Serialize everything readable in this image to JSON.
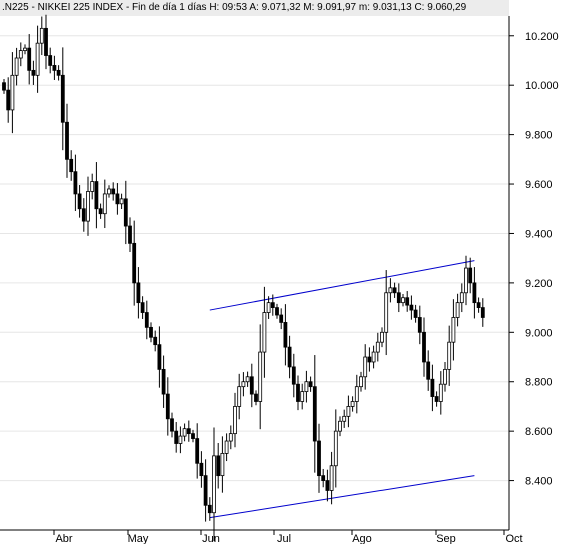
{
  "header": {
    "text": ".N225 - NIKKEI 225 INDEX - Fin de día 1 días  H: 09:53  A: 9.071,32  M: 9.091,97  m: 9.031,13  C: 9.060,29"
  },
  "chart_data": {
    "type": "candlestick",
    "title": "",
    "xlabel": "",
    "ylabel": "",
    "ylim": [
      8200,
      10280
    ],
    "x_tick_labels": [
      "Abr",
      "May",
      "Jun",
      "Jul",
      "Ago",
      "Sep",
      "Oct"
    ],
    "y_ticks": [
      {
        "value": 10200,
        "label": "10.200"
      },
      {
        "value": 10000,
        "label": "10.000"
      },
      {
        "value": 9800,
        "label": "9.800"
      },
      {
        "value": 9600,
        "label": "9.600"
      },
      {
        "value": 9400,
        "label": "9.400"
      },
      {
        "value": 9200,
        "label": "9.200"
      },
      {
        "value": 9000,
        "label": "9.000"
      },
      {
        "value": 8800,
        "label": "8.800"
      },
      {
        "value": 8600,
        "label": "8.600"
      },
      {
        "value": 8400,
        "label": "8.400"
      }
    ],
    "closes": [
      9980,
      9900,
      10040,
      10110,
      10140,
      10150,
      10060,
      10040,
      10170,
      10230,
      10120,
      10080,
      10060,
      10040,
      9850,
      9700,
      9650,
      9560,
      9500,
      9450,
      9570,
      9610,
      9500,
      9480,
      9560,
      9580,
      9560,
      9520,
      9540,
      9430,
      9360,
      9200,
      9120,
      9080,
      9020,
      8980,
      8950,
      8850,
      8750,
      8650,
      8600,
      8550,
      8580,
      8610,
      8590,
      8570,
      8470,
      8420,
      8300,
      8270,
      8500,
      8420,
      8510,
      8560,
      8590,
      8700,
      8780,
      8800,
      8820,
      8750,
      8720,
      8920,
      9080,
      9120,
      9100,
      9070,
      9040,
      8940,
      8860,
      8790,
      8720,
      8760,
      8800,
      8780,
      8560,
      8420,
      8400,
      8360,
      8460,
      8600,
      8640,
      8660,
      8700,
      8720,
      8780,
      8820,
      8900,
      8880,
      8920,
      8960,
      9000,
      9160,
      9180,
      9160,
      9120,
      9140,
      9110,
      9090,
      9060,
      9000,
      8880,
      8810,
      8740,
      8720,
      8790,
      8850,
      8960,
      9060,
      9120,
      9160,
      9260,
      9200,
      9120,
      9100,
      9060
    ],
    "channel_lines": [
      {
        "name": "",
        "from": {
          "day": 49,
          "value": 9090
        },
        "to": {
          "day": 112,
          "value": 9290
        }
      },
      {
        "name": "",
        "from": {
          "day": 49,
          "value": 8250
        },
        "to": {
          "day": 112,
          "value": 8420
        }
      }
    ],
    "colors": {
      "candle": "#000000",
      "channel": "#0000cc",
      "header_bg": "#ececec"
    }
  }
}
